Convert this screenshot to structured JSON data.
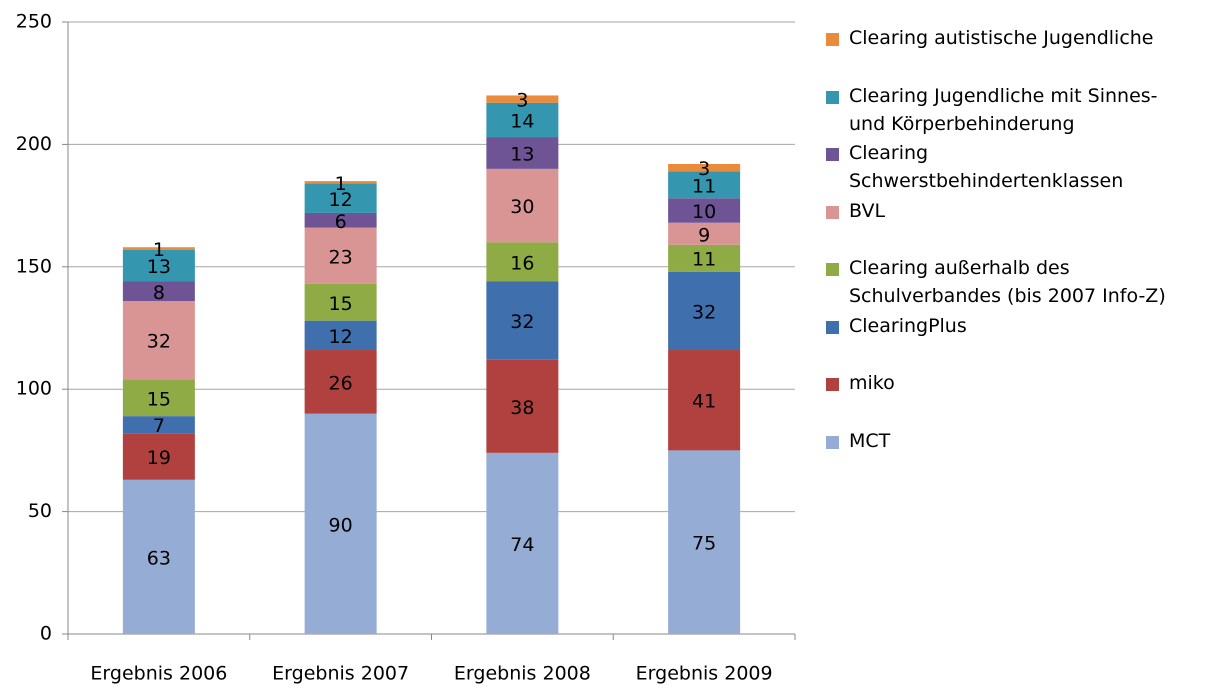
{
  "chart_data": {
    "type": "stacked_bar",
    "categories": [
      "Ergebnis 2006",
      "Ergebnis 2007",
      "Ergebnis 2008",
      "Ergebnis 2009"
    ],
    "series": [
      {
        "name": "MCT",
        "color": "#95acd5",
        "values": [
          63,
          90,
          74,
          75
        ]
      },
      {
        "name": "miko",
        "color": "#b0413e",
        "values": [
          19,
          26,
          38,
          41
        ]
      },
      {
        "name": "ClearingPlus",
        "color": "#3f6fad",
        "values": [
          7,
          12,
          32,
          32
        ]
      },
      {
        "name": "Clearing außerhalb des Schulverbandes (bis 2007 Info-Z)",
        "color": "#8eab46",
        "values": [
          15,
          15,
          16,
          11
        ]
      },
      {
        "name": "BVL",
        "color": "#d99594",
        "values": [
          32,
          23,
          30,
          9
        ]
      },
      {
        "name": "Clearing Schwerstbehindertenklassen",
        "color": "#6f5495",
        "values": [
          8,
          6,
          13,
          10
        ]
      },
      {
        "name": "Clearing Jugendliche mit Sinnes- und Körperbehinderung",
        "color": "#3596b0",
        "values": [
          13,
          12,
          14,
          11
        ]
      },
      {
        "name": "Clearing autistische Jugendliche",
        "color": "#e98b3a",
        "values": [
          1,
          1,
          3,
          3
        ]
      }
    ],
    "ylim": [
      0,
      250
    ],
    "yticks": [
      0,
      50,
      100,
      150,
      200,
      250
    ],
    "grid": true,
    "legend": "right"
  }
}
